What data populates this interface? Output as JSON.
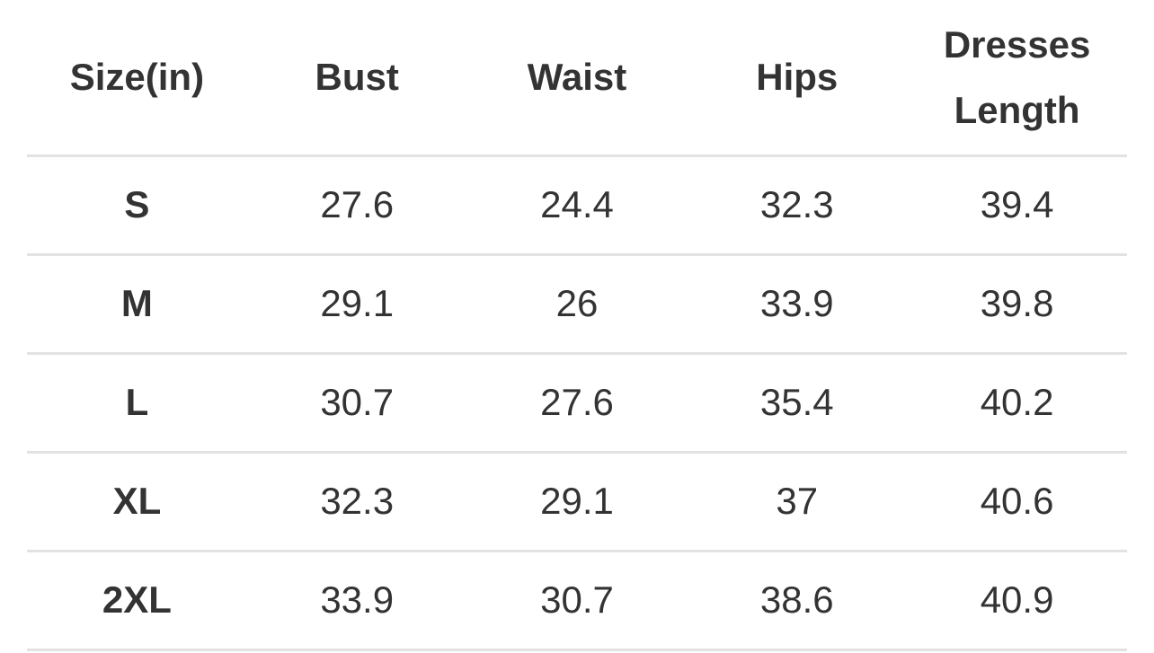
{
  "size_chart": {
    "columns": [
      "Size(in)",
      "Bust",
      "Waist",
      "Hips",
      "Dresses Length"
    ],
    "rows": [
      {
        "size": "S",
        "bust": "27.6",
        "waist": "24.4",
        "hips": "32.3",
        "dresses_length": "39.4"
      },
      {
        "size": "M",
        "bust": "29.1",
        "waist": "26",
        "hips": "33.9",
        "dresses_length": "39.8"
      },
      {
        "size": "L",
        "bust": "30.7",
        "waist": "27.6",
        "hips": "35.4",
        "dresses_length": "40.2"
      },
      {
        "size": "XL",
        "bust": "32.3",
        "waist": "29.1",
        "hips": "37",
        "dresses_length": "40.6"
      },
      {
        "size": "2XL",
        "bust": "33.9",
        "waist": "30.7",
        "hips": "38.6",
        "dresses_length": "40.9"
      }
    ]
  },
  "colors": {
    "text": "#333333",
    "divider": "#e2e2e2",
    "background": "#ffffff"
  }
}
